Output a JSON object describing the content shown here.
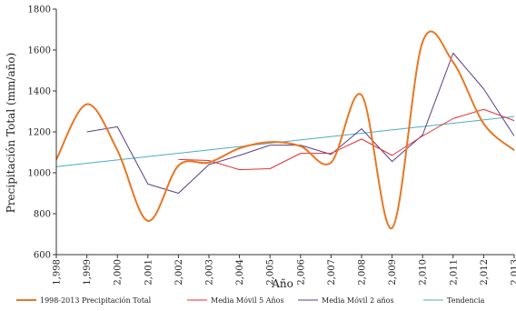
{
  "chart_data": {
    "type": "line",
    "xlabel": "Año",
    "ylabel": "Precipitación  Total   (mm/año)",
    "x_tick_labels": [
      "1,998",
      "1,999",
      "2,000",
      "2,001",
      "2,002",
      "2,003",
      "2,004",
      "2,005",
      "2,006",
      "2,007",
      "2,008",
      "2,009",
      "2,010",
      "2,011",
      "2,012",
      "2,013"
    ],
    "y_tick_labels": [
      "600",
      "800",
      "1000",
      "1200",
      "1400",
      "1600",
      "1800"
    ],
    "xlim": [
      1998,
      2013
    ],
    "ylim": [
      600,
      1800
    ],
    "grid": false,
    "legend_position": "bottom",
    "series": [
      {
        "name": "1998-2013 Precipitación Total",
        "color": "#e87722",
        "smooth": true,
        "x": [
          1998,
          1999,
          2000,
          2001,
          2002,
          2003,
          2004,
          2005,
          2006,
          2007,
          2008,
          2009,
          2010,
          2011,
          2012,
          2013
        ],
        "values": [
          1065,
          1335,
          1110,
          765,
          1035,
          1050,
          1120,
          1150,
          1130,
          1050,
          1380,
          730,
          1640,
          1540,
          1240,
          1110
        ]
      },
      {
        "name": "Media Móvil 5 Años",
        "color": "#e03030",
        "smooth": false,
        "x": [
          2002,
          2003,
          2004,
          2005,
          2006,
          2007,
          2008,
          2009,
          2010,
          2011,
          2012,
          2013
        ],
        "values": [
          1065,
          1060,
          1015,
          1020,
          1095,
          1095,
          1165,
          1085,
          1180,
          1265,
          1310,
          1255
        ]
      },
      {
        "name": "Media Móvil 2 años",
        "color": "#5b3c88",
        "smooth": false,
        "x": [
          1999,
          2000,
          2001,
          2002,
          2003,
          2004,
          2005,
          2006,
          2007,
          2008,
          2009,
          2010,
          2011,
          2012,
          2013
        ],
        "values": [
          1200,
          1225,
          945,
          900,
          1040,
          1085,
          1135,
          1135,
          1090,
          1215,
          1055,
          1185,
          1585,
          1410,
          1180
        ]
      },
      {
        "name": "Tendencia",
        "color": "#4bacc6",
        "smooth": false,
        "x": [
          1998,
          2013
        ],
        "values": [
          1030,
          1275
        ]
      }
    ]
  }
}
